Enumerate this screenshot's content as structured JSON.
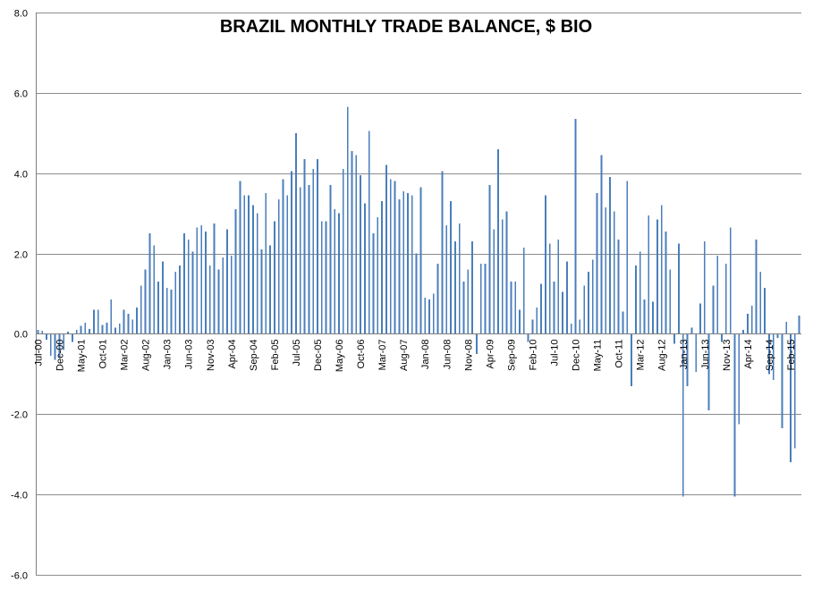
{
  "chart_data": {
    "type": "bar",
    "title": "BRAZIL MONTHLY TRADE BALANCE, $ BIO",
    "xlabel": "",
    "ylabel": "",
    "ylim": [
      -6.0,
      8.0
    ],
    "yticks": [
      "8.0",
      "6.0",
      "4.0",
      "2.0",
      "0.0",
      "-2.0",
      "-4.0",
      "-6.0"
    ],
    "ytick_values": [
      8,
      6,
      4,
      2,
      0,
      -2,
      -4,
      -6
    ],
    "grid": true,
    "legend": "none",
    "bar_color": "#4a7ebb",
    "x_tick_labels": [
      "Jul-00",
      "Dec-00",
      "May-01",
      "Oct-01",
      "Mar-02",
      "Aug-02",
      "Jan-03",
      "Jun-03",
      "Nov-03",
      "Apr-04",
      "Sep-04",
      "Feb-05",
      "Jul-05",
      "Dec-05",
      "May-06",
      "Oct-06",
      "Mar-07",
      "Aug-07",
      "Jan-08",
      "Jun-08",
      "Nov-08",
      "Apr-09",
      "Sep-09",
      "Feb-10",
      "Jul-10",
      "Dec-10",
      "May-11",
      "Oct-11",
      "Mar-12",
      "Aug-12",
      "Jan-13",
      "Jun-13",
      "Nov-13",
      "Apr-14",
      "Sep-14",
      "Feb-15"
    ],
    "x_tick_every": 5,
    "start": "Jul-00",
    "values": [
      0.1,
      0.08,
      -0.15,
      -0.55,
      -0.65,
      -0.6,
      -0.4,
      0.05,
      -0.2,
      0.1,
      0.2,
      0.28,
      0.12,
      0.6,
      0.6,
      0.22,
      0.28,
      0.85,
      0.15,
      0.25,
      0.6,
      0.5,
      0.35,
      0.65,
      1.2,
      1.6,
      2.5,
      2.2,
      1.3,
      1.8,
      1.15,
      1.1,
      1.55,
      1.7,
      2.5,
      2.35,
      2.05,
      2.65,
      2.7,
      2.55,
      1.7,
      2.75,
      1.6,
      1.9,
      2.6,
      1.95,
      3.1,
      3.8,
      3.45,
      3.45,
      3.2,
      3.0,
      2.1,
      3.5,
      2.2,
      2.8,
      3.35,
      3.85,
      3.45,
      4.05,
      5.0,
      3.65,
      4.35,
      3.7,
      4.1,
      4.35,
      2.8,
      2.8,
      3.7,
      3.1,
      3.0,
      4.1,
      5.65,
      4.55,
      4.45,
      3.95,
      3.25,
      5.05,
      2.5,
      2.9,
      3.3,
      4.2,
      3.85,
      3.8,
      3.35,
      3.55,
      3.5,
      3.45,
      2.0,
      3.65,
      0.9,
      0.85,
      1.0,
      1.75,
      4.05,
      2.7,
      3.3,
      2.3,
      2.75,
      1.3,
      1.6,
      2.3,
      -0.5,
      1.75,
      1.75,
      3.7,
      2.6,
      4.6,
      2.85,
      3.05,
      1.3,
      1.3,
      0.6,
      2.15,
      -0.2,
      0.35,
      0.65,
      1.25,
      3.45,
      2.25,
      1.3,
      2.35,
      1.05,
      1.8,
      0.25,
      5.35,
      0.35,
      1.2,
      1.55,
      1.85,
      3.5,
      4.45,
      3.15,
      3.9,
      3.05,
      2.35,
      0.55,
      3.8,
      -1.3,
      1.7,
      2.05,
      0.85,
      2.95,
      0.8,
      2.85,
      3.2,
      2.55,
      1.6,
      -0.25,
      2.25,
      -4.05,
      -1.3,
      0.15,
      -0.95,
      0.75,
      2.3,
      -1.9,
      1.2,
      1.95,
      -0.2,
      1.75,
      2.65,
      -4.05,
      -2.25,
      0.1,
      0.5,
      0.7,
      2.35,
      1.55,
      1.15,
      -1.0,
      -1.15,
      -0.1,
      -2.35,
      0.3,
      -3.2,
      -2.85,
      0.45
    ]
  }
}
